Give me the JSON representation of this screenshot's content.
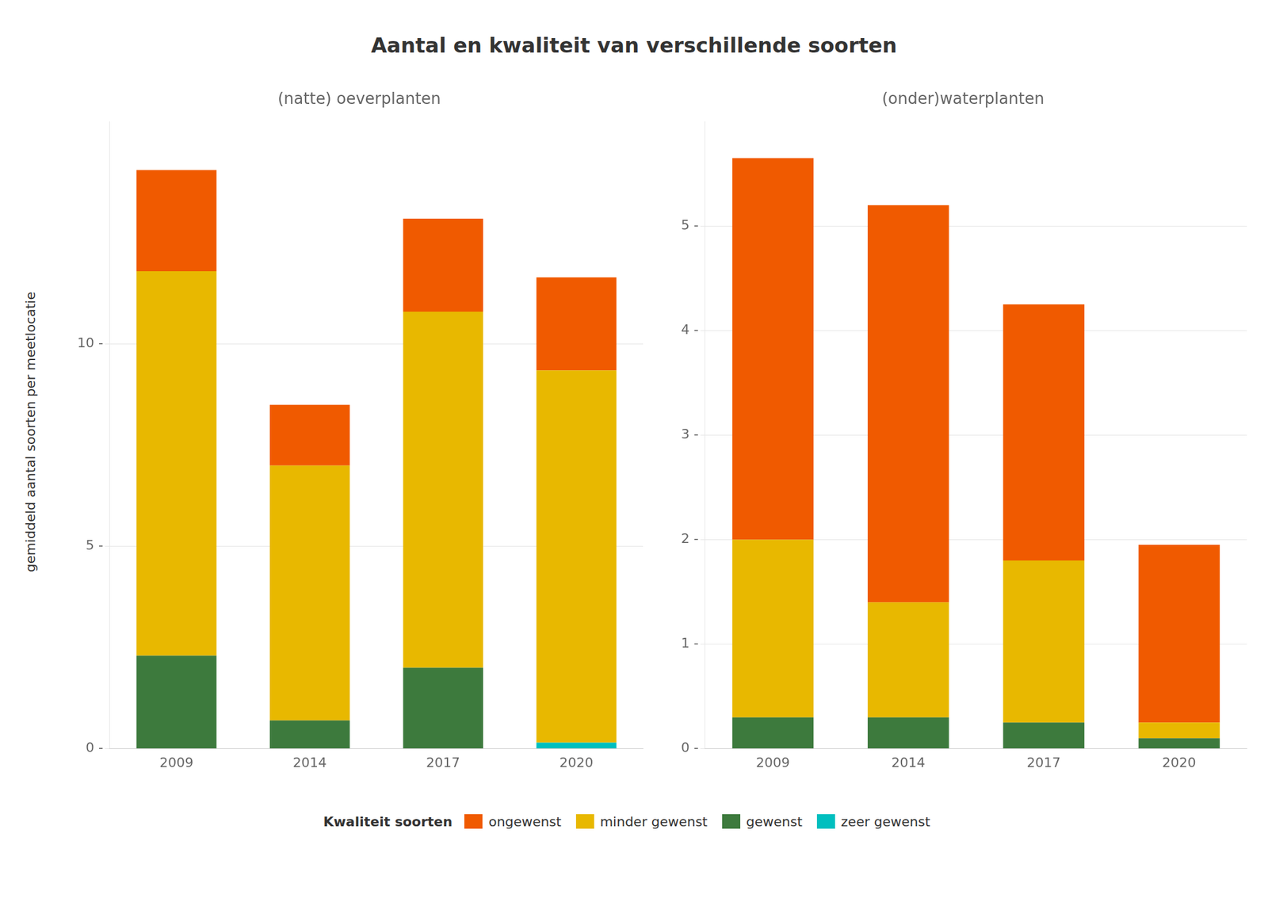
{
  "title": "Aantal en kwaliteit van verschillende soorten",
  "ylabel": "gemiddeld aantal soorten per meetlocatie",
  "legend_title": "Kwaliteit soorten",
  "legend": "bottom",
  "chart_data": [
    {
      "type": "bar",
      "title": "(natte) oeverplanten",
      "categories": [
        "2009",
        "2014",
        "2017",
        "2020"
      ],
      "stacked": true,
      "grid": "y",
      "series": [
        {
          "name": "zeer gewenst",
          "color": "#00bfbf",
          "values": [
            0.0,
            0.0,
            0.0,
            0.15
          ]
        },
        {
          "name": "gewenst",
          "color": "#3d7a3d",
          "values": [
            2.3,
            0.7,
            2.0,
            0.0
          ]
        },
        {
          "name": "minder gewenst",
          "color": "#e8b800",
          "values": [
            9.5,
            6.3,
            8.8,
            9.2
          ]
        },
        {
          "name": "ongewenst",
          "color": "#f05a00",
          "values": [
            2.5,
            1.5,
            2.3,
            2.3
          ]
        }
      ],
      "ylim": [
        0,
        15.5
      ],
      "yticks": [
        {
          "value": 0,
          "label": "0 -"
        },
        {
          "value": 5,
          "label": "5 -"
        },
        {
          "value": 10,
          "label": "10 -"
        }
      ]
    },
    {
      "type": "bar",
      "title": "(onder)waterplanten",
      "categories": [
        "2009",
        "2014",
        "2017",
        "2020"
      ],
      "stacked": true,
      "grid": "y",
      "series": [
        {
          "name": "zeer gewenst",
          "color": "#00bfbf",
          "values": [
            0.0,
            0.0,
            0.0,
            0.0
          ]
        },
        {
          "name": "gewenst",
          "color": "#3d7a3d",
          "values": [
            0.3,
            0.3,
            0.25,
            0.1
          ]
        },
        {
          "name": "minder gewenst",
          "color": "#e8b800",
          "values": [
            1.7,
            1.1,
            1.55,
            0.15
          ]
        },
        {
          "name": "ongewenst",
          "color": "#f05a00",
          "values": [
            3.65,
            3.8,
            2.45,
            1.7
          ]
        }
      ],
      "ylim": [
        0,
        6.0
      ],
      "yticks": [
        {
          "value": 0,
          "label": "0 -"
        },
        {
          "value": 1,
          "label": "1 -"
        },
        {
          "value": 2,
          "label": "2 -"
        },
        {
          "value": 3,
          "label": "3 -"
        },
        {
          "value": 4,
          "label": "4 -"
        },
        {
          "value": 5,
          "label": "5 -"
        }
      ]
    }
  ]
}
